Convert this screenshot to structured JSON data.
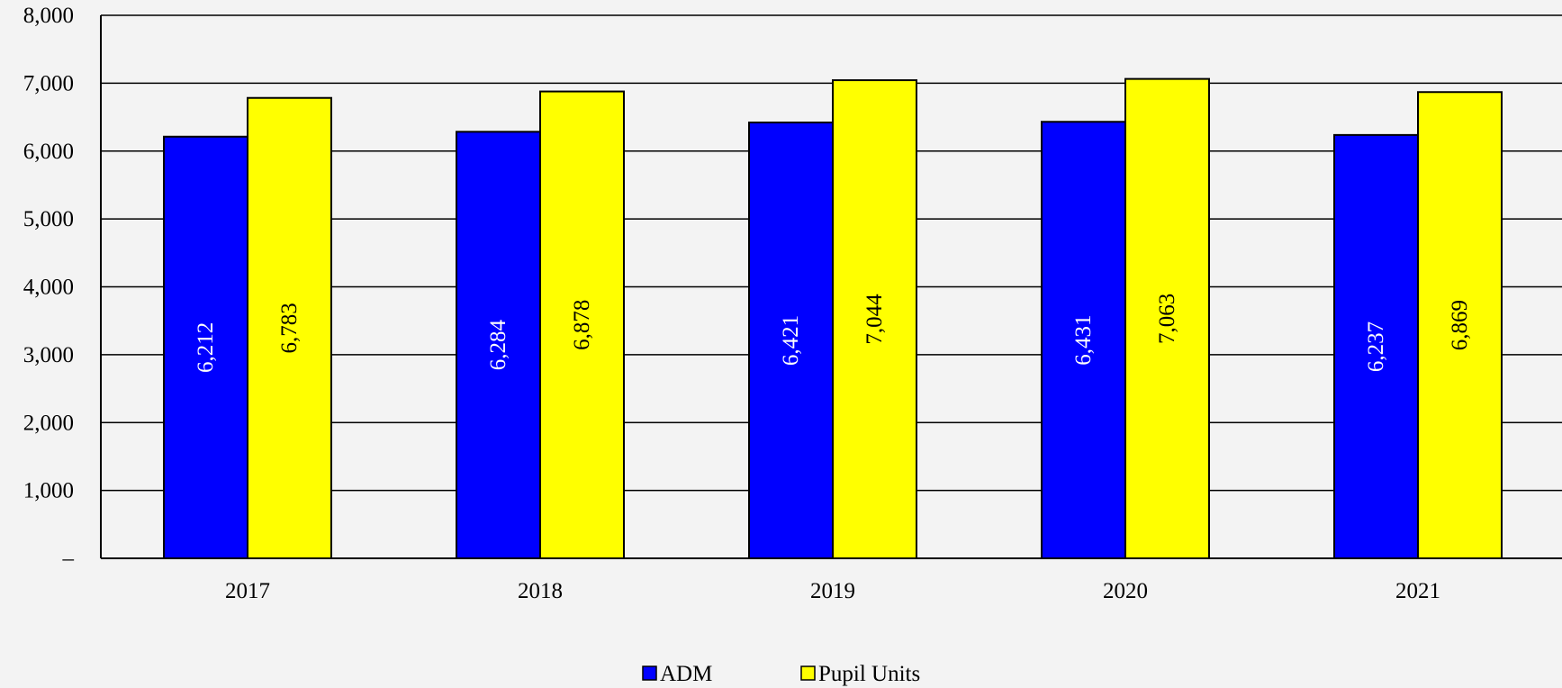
{
  "chart_data": {
    "type": "bar",
    "categories": [
      "2017",
      "2018",
      "2019",
      "2020",
      "2021"
    ],
    "series": [
      {
        "name": "ADM",
        "values": [
          6212,
          6284,
          6421,
          6431,
          6237
        ],
        "labels": [
          "6,212",
          "6,284",
          "6,421",
          "6,431",
          "6,237"
        ],
        "color": "#0000ff",
        "label_color": "#ffffff"
      },
      {
        "name": "Pupil Units",
        "values": [
          6783,
          6878,
          7044,
          7063,
          6869
        ],
        "labels": [
          "6,783",
          "6,878",
          "7,044",
          "7,063",
          "6,869"
        ],
        "color": "#ffff00",
        "label_color": "#000000"
      }
    ],
    "y_ticks": [
      {
        "value": 0,
        "label": "–"
      },
      {
        "value": 1000,
        "label": "1,000"
      },
      {
        "value": 2000,
        "label": "2,000"
      },
      {
        "value": 3000,
        "label": "3,000"
      },
      {
        "value": 4000,
        "label": "4,000"
      },
      {
        "value": 5000,
        "label": "5,000"
      },
      {
        "value": 6000,
        "label": "6,000"
      },
      {
        "value": 7000,
        "label": "7,000"
      },
      {
        "value": 8000,
        "label": "8,000"
      }
    ],
    "ylim": [
      0,
      8000
    ],
    "grid": true,
    "legend_position": "bottom-center",
    "title": "",
    "xlabel": "",
    "ylabel": ""
  }
}
